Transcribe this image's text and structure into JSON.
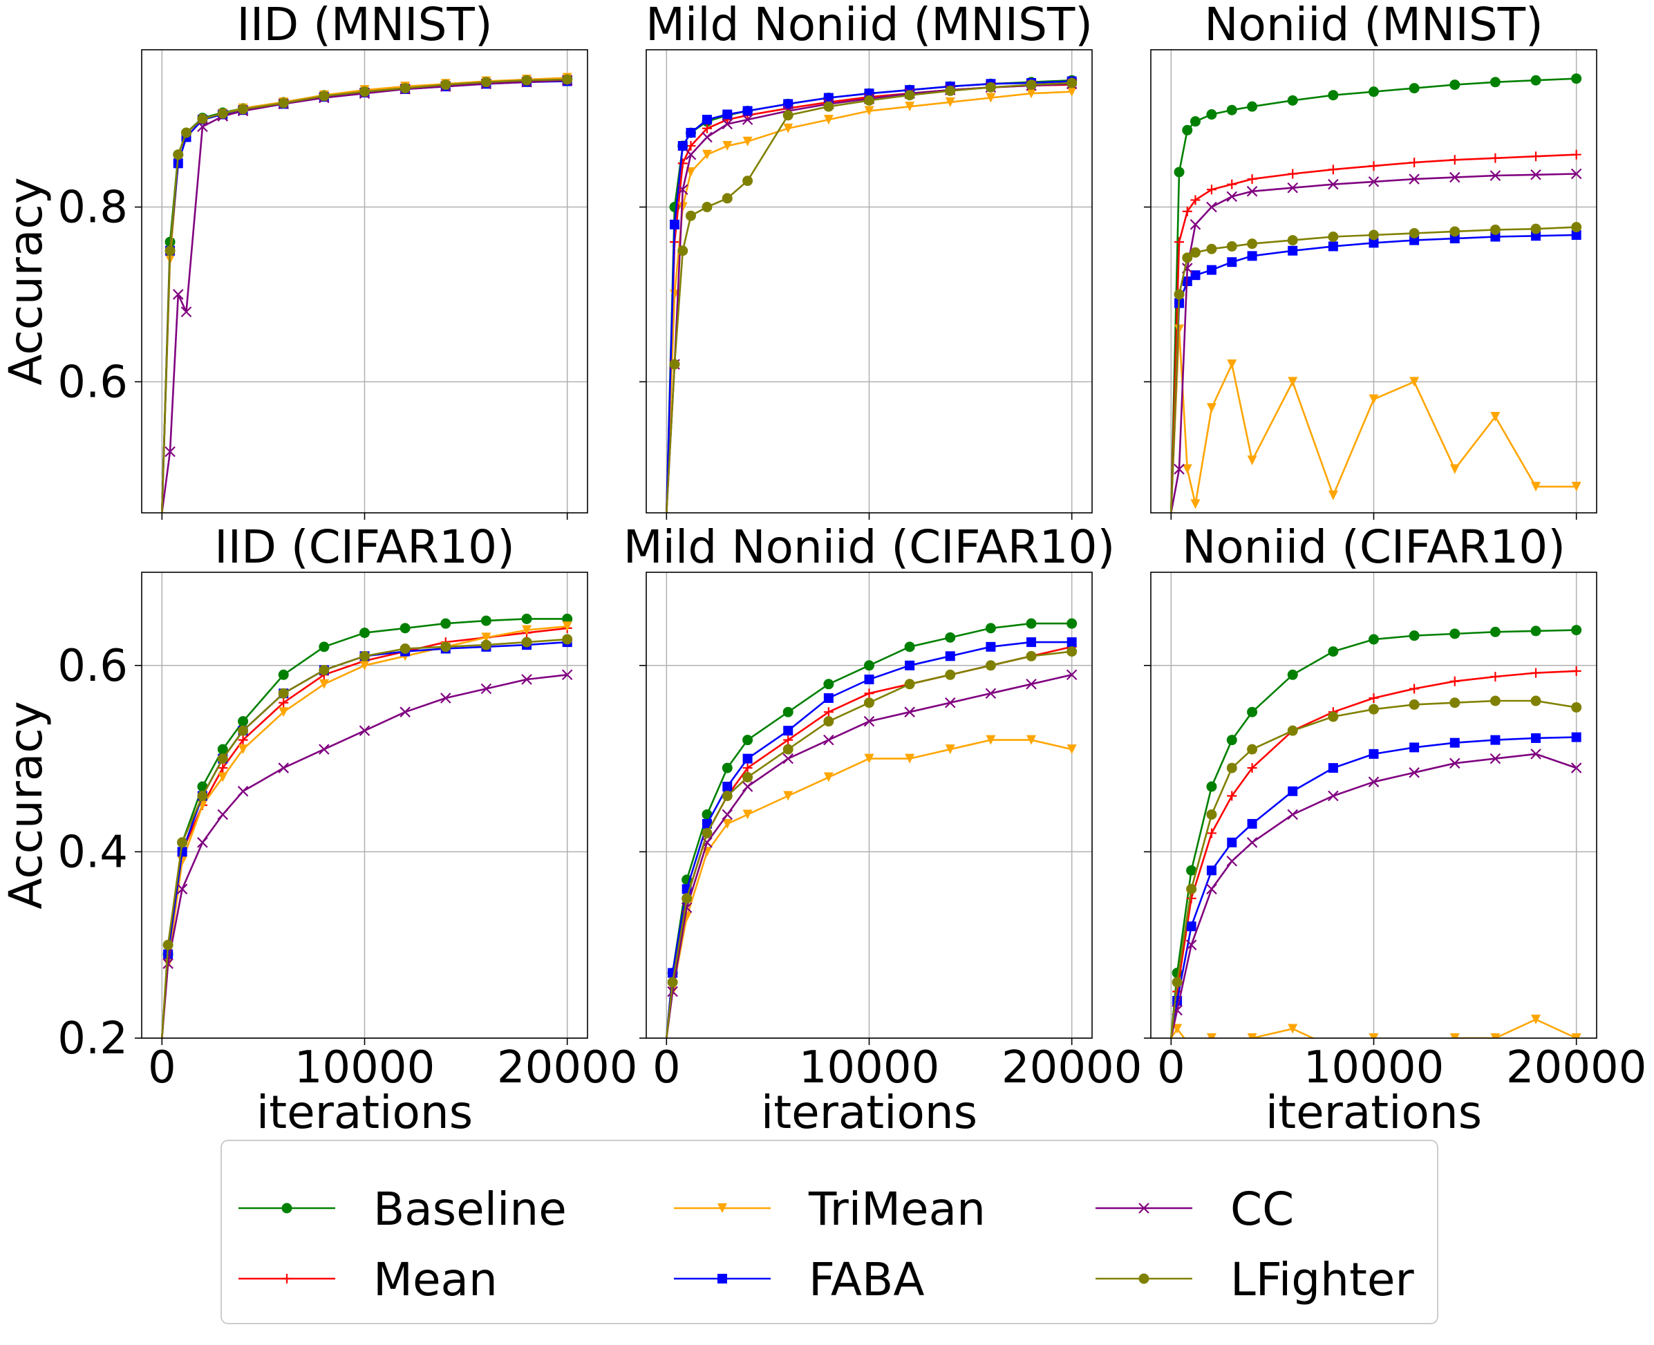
{
  "chart_data": [
    {
      "type": "line",
      "title": "IID (MNIST)",
      "xlabel": "",
      "ylabel": "Accuracy",
      "xlim": [
        -1000,
        21000
      ],
      "ylim": [
        0.45,
        0.98
      ],
      "xticks": [
        0,
        10000,
        20000
      ],
      "yticks": [
        0.6,
        0.8
      ],
      "grid": true,
      "x": [
        0,
        400,
        800,
        1200,
        2000,
        3000,
        4000,
        6000,
        8000,
        10000,
        12000,
        14000,
        16000,
        18000,
        20000
      ],
      "series": [
        {
          "name": "Baseline",
          "values": [
            0.45,
            0.76,
            0.86,
            0.885,
            0.902,
            0.908,
            0.913,
            0.92,
            0.928,
            0.933,
            0.937,
            0.94,
            0.943,
            0.945,
            0.947
          ]
        },
        {
          "name": "Mean",
          "values": [
            0.45,
            0.75,
            0.85,
            0.88,
            0.9,
            0.907,
            0.912,
            0.919,
            0.927,
            0.932,
            0.936,
            0.939,
            0.942,
            0.944,
            0.946
          ]
        },
        {
          "name": "TriMean",
          "values": [
            0.45,
            0.74,
            0.85,
            0.88,
            0.9,
            0.907,
            0.913,
            0.92,
            0.928,
            0.934,
            0.938,
            0.941,
            0.944,
            0.946,
            0.948
          ]
        },
        {
          "name": "FABA",
          "values": [
            0.45,
            0.75,
            0.85,
            0.88,
            0.9,
            0.906,
            0.911,
            0.918,
            0.926,
            0.931,
            0.935,
            0.938,
            0.941,
            0.943,
            0.944
          ]
        },
        {
          "name": "CC",
          "values": [
            0.45,
            0.52,
            0.7,
            0.68,
            0.892,
            0.904,
            0.91,
            0.918,
            0.925,
            0.93,
            0.935,
            0.938,
            0.941,
            0.943,
            0.945
          ]
        },
        {
          "name": "LFighter",
          "values": [
            0.45,
            0.75,
            0.86,
            0.885,
            0.901,
            0.907,
            0.912,
            0.919,
            0.927,
            0.932,
            0.936,
            0.94,
            0.943,
            0.945,
            0.946
          ]
        }
      ]
    },
    {
      "type": "line",
      "title": "Mild Noniid (MNIST)",
      "xlabel": "",
      "ylabel": "",
      "xlim": [
        -1000,
        21000
      ],
      "ylim": [
        0.45,
        0.98
      ],
      "xticks": [
        0,
        10000,
        20000
      ],
      "yticks": [
        0.6,
        0.8
      ],
      "grid": true,
      "x": [
        0,
        400,
        800,
        1200,
        2000,
        3000,
        4000,
        6000,
        8000,
        10000,
        12000,
        14000,
        16000,
        18000,
        20000
      ],
      "series": [
        {
          "name": "Baseline",
          "values": [
            0.45,
            0.8,
            0.87,
            0.885,
            0.898,
            0.905,
            0.91,
            0.918,
            0.925,
            0.93,
            0.934,
            0.938,
            0.941,
            0.943,
            0.945
          ]
        },
        {
          "name": "Mean",
          "values": [
            0.45,
            0.76,
            0.85,
            0.87,
            0.89,
            0.9,
            0.905,
            0.913,
            0.92,
            0.926,
            0.93,
            0.934,
            0.937,
            0.939,
            0.94
          ]
        },
        {
          "name": "TriMean",
          "values": [
            0.45,
            0.7,
            0.8,
            0.84,
            0.86,
            0.87,
            0.875,
            0.89,
            0.9,
            0.91,
            0.915,
            0.92,
            0.925,
            0.93,
            0.932
          ]
        },
        {
          "name": "FABA",
          "values": [
            0.45,
            0.78,
            0.87,
            0.885,
            0.9,
            0.906,
            0.91,
            0.918,
            0.925,
            0.93,
            0.934,
            0.938,
            0.941,
            0.942,
            0.944
          ]
        },
        {
          "name": "CC",
          "values": [
            0.45,
            0.62,
            0.82,
            0.86,
            0.88,
            0.895,
            0.9,
            0.91,
            0.918,
            0.924,
            0.93,
            0.934,
            0.937,
            0.939,
            0.941
          ]
        },
        {
          "name": "LFighter",
          "values": [
            0.45,
            0.62,
            0.75,
            0.79,
            0.8,
            0.81,
            0.83,
            0.905,
            0.915,
            0.922,
            0.928,
            0.933,
            0.937,
            0.94,
            0.942
          ]
        }
      ]
    },
    {
      "type": "line",
      "title": "Noniid (MNIST)",
      "xlabel": "",
      "ylabel": "",
      "xlim": [
        -1000,
        21000
      ],
      "ylim": [
        0.45,
        0.98
      ],
      "xticks": [
        0,
        10000,
        20000
      ],
      "yticks": [
        0.6,
        0.8
      ],
      "grid": true,
      "x": [
        0,
        400,
        800,
        1200,
        2000,
        3000,
        4000,
        6000,
        8000,
        10000,
        12000,
        14000,
        16000,
        18000,
        20000
      ],
      "series": [
        {
          "name": "Baseline",
          "values": [
            0.45,
            0.84,
            0.888,
            0.898,
            0.906,
            0.911,
            0.915,
            0.922,
            0.928,
            0.932,
            0.936,
            0.94,
            0.943,
            0.945,
            0.947
          ]
        },
        {
          "name": "Mean",
          "values": [
            0.45,
            0.76,
            0.795,
            0.808,
            0.82,
            0.826,
            0.832,
            0.838,
            0.843,
            0.847,
            0.851,
            0.854,
            0.856,
            0.858,
            0.86
          ]
        },
        {
          "name": "TriMean",
          "values": [
            0.45,
            0.66,
            0.5,
            0.46,
            0.57,
            0.62,
            0.51,
            0.6,
            0.47,
            0.58,
            0.6,
            0.5,
            0.56,
            0.48,
            0.48
          ]
        },
        {
          "name": "FABA",
          "values": [
            0.45,
            0.69,
            0.715,
            0.722,
            0.728,
            0.737,
            0.744,
            0.75,
            0.755,
            0.759,
            0.762,
            0.764,
            0.766,
            0.767,
            0.768
          ]
        },
        {
          "name": "CC",
          "values": [
            0.45,
            0.5,
            0.73,
            0.78,
            0.8,
            0.812,
            0.818,
            0.822,
            0.826,
            0.829,
            0.832,
            0.834,
            0.836,
            0.837,
            0.838
          ]
        },
        {
          "name": "LFighter",
          "values": [
            0.45,
            0.7,
            0.742,
            0.748,
            0.752,
            0.755,
            0.758,
            0.762,
            0.766,
            0.768,
            0.77,
            0.772,
            0.774,
            0.775,
            0.777
          ]
        }
      ]
    },
    {
      "type": "line",
      "title": "IID (CIFAR10)",
      "xlabel": "iterations",
      "ylabel": "Accuracy",
      "xlim": [
        -1000,
        21000
      ],
      "ylim": [
        0.2,
        0.7
      ],
      "xticks": [
        0,
        10000,
        20000
      ],
      "yticks": [
        0.2,
        0.4,
        0.6
      ],
      "grid": true,
      "x": [
        0,
        300,
        1000,
        2000,
        3000,
        4000,
        6000,
        8000,
        10000,
        12000,
        14000,
        16000,
        18000,
        20000
      ],
      "series": [
        {
          "name": "Baseline",
          "values": [
            0.2,
            0.29,
            0.41,
            0.47,
            0.51,
            0.54,
            0.59,
            0.62,
            0.635,
            0.64,
            0.645,
            0.648,
            0.65,
            0.65
          ]
        },
        {
          "name": "Mean",
          "values": [
            0.2,
            0.29,
            0.4,
            0.45,
            0.49,
            0.52,
            0.56,
            0.59,
            0.605,
            0.615,
            0.625,
            0.63,
            0.635,
            0.64
          ]
        },
        {
          "name": "TriMean",
          "values": [
            0.2,
            0.28,
            0.39,
            0.45,
            0.48,
            0.51,
            0.55,
            0.58,
            0.6,
            0.61,
            0.62,
            0.63,
            0.638,
            0.642
          ]
        },
        {
          "name": "FABA",
          "values": [
            0.2,
            0.29,
            0.4,
            0.46,
            0.5,
            0.53,
            0.57,
            0.595,
            0.61,
            0.615,
            0.618,
            0.62,
            0.622,
            0.625
          ]
        },
        {
          "name": "CC",
          "values": [
            0.2,
            0.28,
            0.36,
            0.41,
            0.44,
            0.465,
            0.49,
            0.51,
            0.53,
            0.55,
            0.565,
            0.575,
            0.585,
            0.59
          ]
        },
        {
          "name": "LFighter",
          "values": [
            0.2,
            0.3,
            0.41,
            0.46,
            0.5,
            0.53,
            0.57,
            0.595,
            0.61,
            0.618,
            0.62,
            0.622,
            0.625,
            0.628
          ]
        }
      ]
    },
    {
      "type": "line",
      "title": "Mild Noniid (CIFAR10)",
      "xlabel": "iterations",
      "ylabel": "",
      "xlim": [
        -1000,
        21000
      ],
      "ylim": [
        0.2,
        0.7
      ],
      "xticks": [
        0,
        10000,
        20000
      ],
      "yticks": [
        0.2,
        0.4,
        0.6
      ],
      "grid": true,
      "x": [
        0,
        300,
        1000,
        2000,
        3000,
        4000,
        6000,
        8000,
        10000,
        12000,
        14000,
        16000,
        18000,
        20000
      ],
      "series": [
        {
          "name": "Baseline",
          "values": [
            0.2,
            0.27,
            0.37,
            0.44,
            0.49,
            0.52,
            0.55,
            0.58,
            0.6,
            0.62,
            0.63,
            0.64,
            0.645,
            0.645
          ]
        },
        {
          "name": "Mean",
          "values": [
            0.2,
            0.26,
            0.35,
            0.42,
            0.46,
            0.49,
            0.52,
            0.55,
            0.57,
            0.58,
            0.59,
            0.6,
            0.61,
            0.62
          ]
        },
        {
          "name": "TriMean",
          "values": [
            0.2,
            0.25,
            0.33,
            0.4,
            0.43,
            0.44,
            0.46,
            0.48,
            0.5,
            0.5,
            0.51,
            0.52,
            0.52,
            0.51
          ]
        },
        {
          "name": "FABA",
          "values": [
            0.2,
            0.27,
            0.36,
            0.43,
            0.47,
            0.5,
            0.53,
            0.565,
            0.585,
            0.6,
            0.61,
            0.62,
            0.625,
            0.625
          ]
        },
        {
          "name": "CC",
          "values": [
            0.2,
            0.25,
            0.34,
            0.41,
            0.44,
            0.47,
            0.5,
            0.52,
            0.54,
            0.55,
            0.56,
            0.57,
            0.58,
            0.59
          ]
        },
        {
          "name": "LFighter",
          "values": [
            0.2,
            0.26,
            0.35,
            0.42,
            0.46,
            0.48,
            0.51,
            0.54,
            0.56,
            0.58,
            0.59,
            0.6,
            0.61,
            0.615
          ]
        }
      ]
    },
    {
      "type": "line",
      "title": "Noniid (CIFAR10)",
      "xlabel": "iterations",
      "ylabel": "",
      "xlim": [
        -1000,
        21000
      ],
      "ylim": [
        0.2,
        0.7
      ],
      "xticks": [
        0,
        10000,
        20000
      ],
      "yticks": [
        0.2,
        0.4,
        0.6
      ],
      "grid": true,
      "x": [
        0,
        300,
        1000,
        2000,
        3000,
        4000,
        6000,
        8000,
        10000,
        12000,
        14000,
        16000,
        18000,
        20000
      ],
      "series": [
        {
          "name": "Baseline",
          "values": [
            0.2,
            0.27,
            0.38,
            0.47,
            0.52,
            0.55,
            0.59,
            0.615,
            0.628,
            0.632,
            0.634,
            0.636,
            0.637,
            0.638
          ]
        },
        {
          "name": "Mean",
          "values": [
            0.2,
            0.25,
            0.35,
            0.42,
            0.46,
            0.49,
            0.53,
            0.55,
            0.565,
            0.575,
            0.583,
            0.588,
            0.592,
            0.594
          ]
        },
        {
          "name": "TriMean",
          "values": [
            0.2,
            0.21,
            0.19,
            0.2,
            0.19,
            0.2,
            0.21,
            0.19,
            0.2,
            0.19,
            0.2,
            0.2,
            0.22,
            0.2
          ]
        },
        {
          "name": "FABA",
          "values": [
            0.2,
            0.24,
            0.32,
            0.38,
            0.41,
            0.43,
            0.465,
            0.49,
            0.505,
            0.512,
            0.517,
            0.52,
            0.522,
            0.523
          ]
        },
        {
          "name": "CC",
          "values": [
            0.2,
            0.23,
            0.3,
            0.36,
            0.39,
            0.41,
            0.44,
            0.46,
            0.475,
            0.485,
            0.495,
            0.5,
            0.505,
            0.49
          ]
        },
        {
          "name": "LFighter",
          "values": [
            0.2,
            0.26,
            0.36,
            0.44,
            0.49,
            0.51,
            0.53,
            0.545,
            0.553,
            0.558,
            0.56,
            0.562,
            0.562,
            0.555
          ]
        }
      ]
    }
  ],
  "legend": {
    "placement": "bottom",
    "entries": [
      {
        "name": "Baseline",
        "color": "#008000",
        "marker": "circle"
      },
      {
        "name": "Mean",
        "color": "#ff0000",
        "marker": "plus"
      },
      {
        "name": "TriMean",
        "color": "#ffa500",
        "marker": "triangle-down"
      },
      {
        "name": "FABA",
        "color": "#0000ff",
        "marker": "square"
      },
      {
        "name": "CC",
        "color": "#800080",
        "marker": "x"
      },
      {
        "name": "LFighter",
        "color": "#808000",
        "marker": "circle"
      }
    ]
  }
}
